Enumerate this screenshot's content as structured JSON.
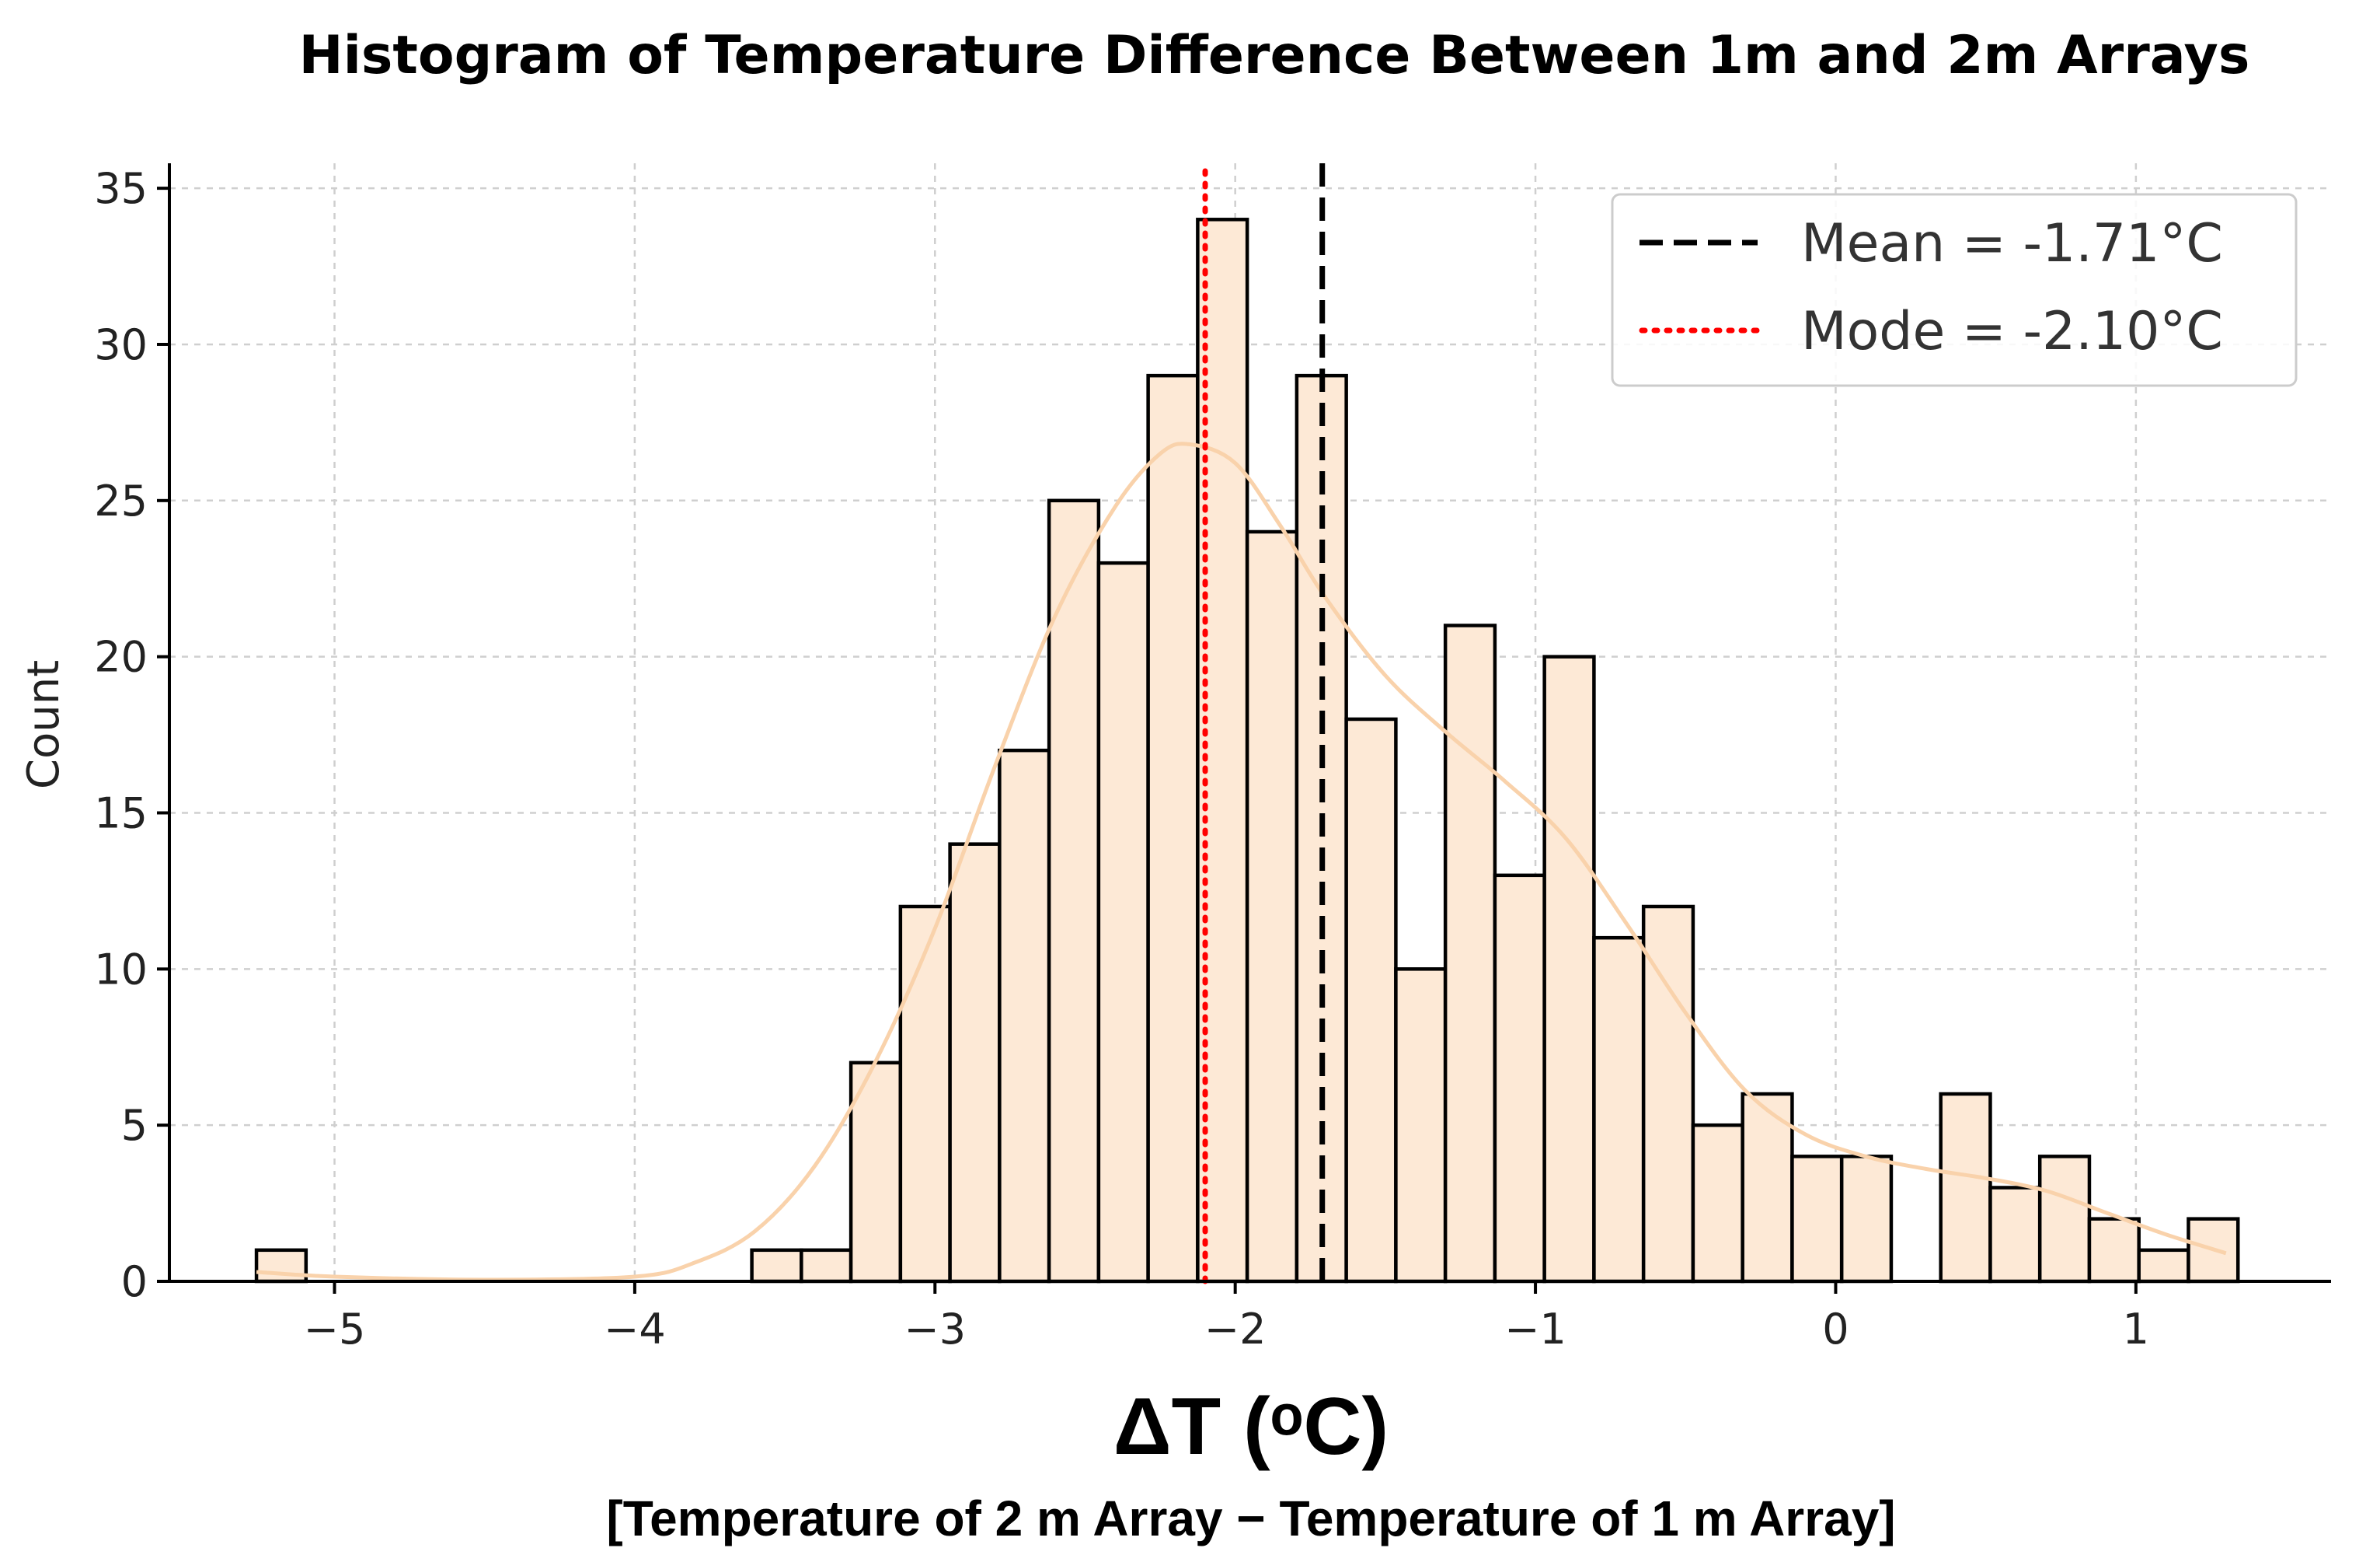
{
  "chart_data": {
    "type": "bar",
    "title": "Histogram of Temperature Difference Between 1m and 2m Arrays",
    "xlabel": "ΔT (ᵒC)",
    "xlabel_sub": "[Temperature of 2 m Array − Temperature of 1 m Array]",
    "ylabel": "Count",
    "xlim": [
      -5.55,
      1.65
    ],
    "ylim": [
      0,
      35.8
    ],
    "grid": true,
    "x_ticks": [
      {
        "value": -5,
        "label": "−5"
      },
      {
        "value": -4,
        "label": "−4"
      },
      {
        "value": -3,
        "label": "−3"
      },
      {
        "value": -2,
        "label": "−2"
      },
      {
        "value": -1,
        "label": "−1"
      },
      {
        "value": 0,
        "label": "0"
      },
      {
        "value": 1,
        "label": "1"
      }
    ],
    "y_ticks": [
      {
        "value": 0,
        "label": "0"
      },
      {
        "value": 5,
        "label": "5"
      },
      {
        "value": 10,
        "label": "10"
      },
      {
        "value": 15,
        "label": "15"
      },
      {
        "value": 20,
        "label": "20"
      },
      {
        "value": 25,
        "label": "25"
      },
      {
        "value": 30,
        "label": "30"
      },
      {
        "value": 35,
        "label": "35"
      }
    ],
    "bin_start": -5.26,
    "bin_width": 0.165,
    "counts": [
      1,
      0,
      0,
      0,
      0,
      0,
      0,
      0,
      0,
      0,
      1,
      1,
      7,
      12,
      14,
      17,
      25,
      23,
      29,
      34,
      24,
      29,
      18,
      10,
      21,
      13,
      20,
      11,
      12,
      5,
      6,
      4,
      4,
      0,
      6,
      3,
      4,
      2,
      1,
      2
    ],
    "bar_color": "#fde9d6",
    "bar_edge_color": "#000000",
    "kde": {
      "color": "#f9d2ab",
      "points": [
        [
          -5.26,
          0.3
        ],
        [
          -5.0,
          0.15
        ],
        [
          -4.5,
          0.05
        ],
        [
          -4.0,
          0.15
        ],
        [
          -3.8,
          0.6
        ],
        [
          -3.6,
          1.6
        ],
        [
          -3.4,
          3.7
        ],
        [
          -3.2,
          7.0
        ],
        [
          -3.0,
          11.3
        ],
        [
          -2.8,
          16.5
        ],
        [
          -2.6,
          21.3
        ],
        [
          -2.4,
          24.8
        ],
        [
          -2.25,
          26.5
        ],
        [
          -2.15,
          26.8
        ],
        [
          -2.0,
          26.2
        ],
        [
          -1.85,
          24.2
        ],
        [
          -1.7,
          21.9
        ],
        [
          -1.5,
          19.4
        ],
        [
          -1.3,
          17.6
        ],
        [
          -1.1,
          16.0
        ],
        [
          -0.9,
          14.2
        ],
        [
          -0.7,
          11.5
        ],
        [
          -0.5,
          8.6
        ],
        [
          -0.3,
          6.1
        ],
        [
          -0.1,
          4.7
        ],
        [
          0.1,
          4.0
        ],
        [
          0.3,
          3.6
        ],
        [
          0.5,
          3.3
        ],
        [
          0.7,
          2.9
        ],
        [
          0.9,
          2.2
        ],
        [
          1.1,
          1.5
        ],
        [
          1.3,
          0.9
        ]
      ]
    },
    "mean": {
      "value": -1.71,
      "label": "Mean = -1.71°C",
      "color": "#000000"
    },
    "mode": {
      "value": -2.1,
      "label": "Mode = -2.10°C",
      "color": "#ff0000"
    },
    "legend_position": "top-right"
  }
}
